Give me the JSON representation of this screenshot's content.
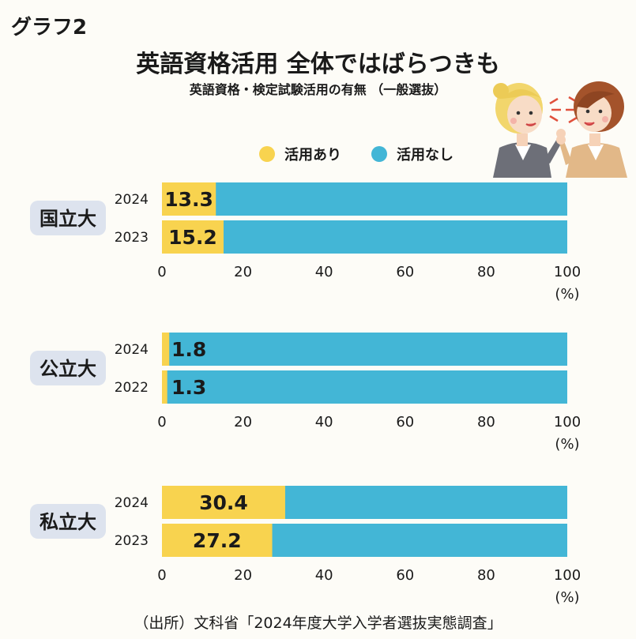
{
  "figure_label": "グラフ2",
  "title": "英語資格活用 全体ではばらつきも",
  "subtitle": "英語資格・検定試験活用の有無 （一般選抜）",
  "source": "（出所）文科省「2024年度大学入学者選抜実態調査」",
  "colors": {
    "used": "#f8d34f",
    "not_used": "#43b6d6",
    "group_label_bg": "#dde3ee"
  },
  "chart_data": {
    "type": "bar",
    "orientation": "horizontal",
    "stacked": true,
    "legend": [
      {
        "name": "活用あり",
        "color": "#f8d34f"
      },
      {
        "name": "活用なし",
        "color": "#43b6d6"
      }
    ],
    "xlim": [
      0,
      100
    ],
    "x_ticks": [
      "0",
      "20",
      "40",
      "60",
      "80",
      "100"
    ],
    "unit": "(%)",
    "groups": [
      {
        "label": "国立大",
        "rows": [
          {
            "year": "2024",
            "used": 13.3,
            "used_label": "13.3"
          },
          {
            "year": "2023",
            "used": 15.2,
            "used_label": "15.2"
          }
        ]
      },
      {
        "label": "公立大",
        "rows": [
          {
            "year": "2024",
            "used": 1.8,
            "used_label": "1.8"
          },
          {
            "year": "2022",
            "used": 1.3,
            "used_label": "1.3"
          }
        ]
      },
      {
        "label": "私立大",
        "rows": [
          {
            "year": "2024",
            "used": 30.4,
            "used_label": "30.4"
          },
          {
            "year": "2023",
            "used": 27.2,
            "used_label": "27.2"
          }
        ]
      }
    ]
  }
}
